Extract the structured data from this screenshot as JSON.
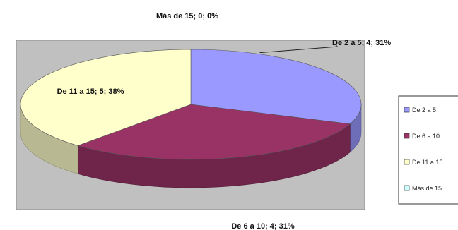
{
  "chart_data": {
    "type": "pie",
    "style": "3d-exploded-off",
    "title": "",
    "categories": [
      "De 2 a 5",
      "De 6 a 10",
      "De 11 a 15",
      "Más de 15"
    ],
    "values": [
      4,
      4,
      5,
      0
    ],
    "percentages": [
      31,
      31,
      38,
      0
    ],
    "colors": [
      "#9999ff",
      "#993366",
      "#ffffcc",
      "#ccffff"
    ],
    "data_labels": [
      "De 2 a 5; 4; 31%",
      "De 6 a 10; 4; 31%",
      "De 11 a 15; 5; 38%",
      "Más de 15; 0; 0%"
    ],
    "legend_entries": [
      "De 2 a 5",
      "De 6 a 10",
      "De 11 a 15",
      "Más de 15"
    ],
    "legend_position": "right",
    "plot_area_color": "#c0c0c0"
  }
}
